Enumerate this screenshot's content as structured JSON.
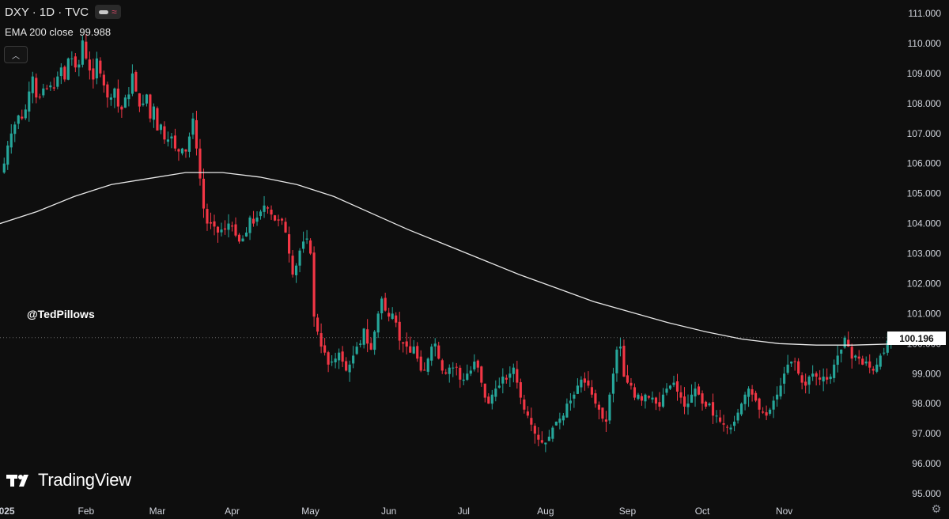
{
  "header": {
    "symbol_line": "DXY · 1D · TVC",
    "indicator_label": "EMA 200 close",
    "indicator_value": "99.988"
  },
  "watermark": "@TedPillows",
  "branding": {
    "logo_text": "TradingView"
  },
  "current_price": "100.196",
  "colors": {
    "up": "#26a69a",
    "down": "#f23645",
    "ema": "#e8e8e8",
    "background": "#0e0e0e"
  },
  "icons": {
    "collapse": "chevron-up-icon",
    "settings": "gear-icon"
  },
  "chart_data": {
    "type": "candlestick",
    "title": "DXY · 1D · TVC",
    "ylim": [
      95,
      111
    ],
    "y_ticks": [
      111,
      110,
      109,
      108,
      107,
      106,
      105,
      104,
      103,
      102,
      101,
      100,
      99,
      98,
      97,
      96,
      95
    ],
    "y_tick_labels": [
      "111.000",
      "110.000",
      "109.000",
      "108.000",
      "107.000",
      "106.000",
      "105.000",
      "104.000",
      "103.000",
      "102.000",
      "101.000",
      "100.000",
      "99.000",
      "98.000",
      "97.000",
      "96.000",
      "95.000"
    ],
    "x_tick_labels": [
      "2025",
      "Feb",
      "Mar",
      "Apr",
      "May",
      "Jun",
      "Jul",
      "Aug",
      "Sep",
      "Oct",
      "Nov"
    ],
    "x_tick_label_index": [
      0,
      23,
      43,
      64,
      86,
      108,
      129,
      152,
      175,
      196,
      219
    ],
    "series": [
      {
        "name": "DXY",
        "values": [
          106.0,
          106.6,
          107.0,
          107.3,
          107.6,
          107.5,
          107.8,
          108.4,
          108.9,
          108.2,
          108.2,
          108.5,
          108.5,
          108.6,
          108.5,
          108.9,
          109.2,
          108.8,
          109.5,
          109.5,
          109.2,
          109.3,
          110.1,
          109.5,
          109.1,
          108.8,
          109.5,
          109.0,
          108.6,
          108.2,
          108.2,
          108.5,
          107.9,
          107.8,
          108.2,
          108.3,
          109.0,
          108.4,
          107.9,
          108.0,
          108.3,
          107.5,
          107.9,
          107.1,
          107.3,
          106.8,
          106.8,
          106.9,
          106.5,
          106.4,
          106.5,
          106.4,
          106.9,
          107.5,
          106.5,
          105.5,
          104.5,
          104.0,
          104.0,
          103.9,
          103.7,
          103.8,
          103.8,
          104.0,
          103.9,
          103.6,
          103.4,
          103.5,
          103.7,
          104.2,
          104.0,
          104.2,
          104.4,
          104.6,
          104.5,
          104.3,
          104.1,
          104.1,
          104.1,
          103.7,
          103.0,
          102.3,
          102.6,
          103.1,
          103.4,
          103.5,
          103.0,
          100.9,
          100.4,
          99.9,
          99.7,
          99.3,
          99.4,
          99.5,
          99.7,
          99.4,
          99.1,
          99.3,
          99.6,
          99.9,
          100.0,
          100.5,
          100.0,
          99.8,
          100.4,
          101.0,
          101.5,
          101.1,
          100.9,
          101.0,
          100.7,
          100.1,
          100.0,
          99.9,
          99.7,
          99.9,
          99.5,
          99.1,
          99.1,
          99.5,
          99.9,
          100.0,
          99.5,
          99.1,
          99.0,
          99.2,
          99.2,
          99.2,
          98.8,
          98.8,
          99.0,
          99.1,
          99.4,
          99.2,
          98.7,
          98.2,
          98.0,
          98.3,
          98.5,
          98.6,
          98.9,
          98.8,
          99.0,
          99.2,
          98.7,
          98.2,
          97.8,
          97.6,
          97.3,
          97.0,
          96.8,
          96.7,
          96.7,
          96.9,
          97.2,
          97.4,
          97.5,
          97.6,
          98.0,
          98.1,
          98.3,
          98.6,
          98.8,
          98.7,
          98.6,
          98.3,
          98.0,
          97.8,
          97.5,
          97.4,
          98.3,
          99.0,
          99.8,
          99.9,
          98.9,
          98.7,
          98.6,
          98.2,
          98.3,
          98.1,
          98.3,
          98.2,
          98.2,
          98.0,
          97.9,
          98.3,
          98.5,
          98.6,
          98.7,
          98.4,
          98.2,
          97.9,
          98.0,
          98.3,
          98.5,
          98.3,
          98.0,
          97.9,
          98.0,
          97.6,
          97.6,
          97.4,
          97.3,
          97.2,
          97.2,
          97.4,
          97.7,
          98.0,
          98.3,
          98.5,
          98.3,
          98.1,
          97.8,
          97.7,
          97.6,
          97.8,
          98.1,
          98.3,
          98.6,
          99.0,
          99.3,
          99.4,
          99.4,
          99.0,
          98.7,
          98.6,
          98.9,
          99.0,
          98.9,
          98.8,
          98.9,
          98.8,
          98.9,
          99.3,
          99.6,
          99.8,
          100.2,
          99.9,
          99.5,
          99.6,
          99.5,
          99.3,
          99.4,
          99.2,
          99.1,
          99.3,
          99.6,
          99.7,
          100.1,
          100.2
        ]
      },
      {
        "name": "EMA 200 close",
        "values": [
          104.0,
          104.4,
          104.9,
          105.3,
          105.5,
          105.7,
          105.7,
          105.55,
          105.3,
          104.9,
          104.35,
          103.8,
          103.3,
          102.8,
          102.3,
          101.85,
          101.4,
          101.05,
          100.7,
          100.4,
          100.15,
          100.0,
          99.95,
          99.95,
          99.988
        ]
      }
    ]
  }
}
